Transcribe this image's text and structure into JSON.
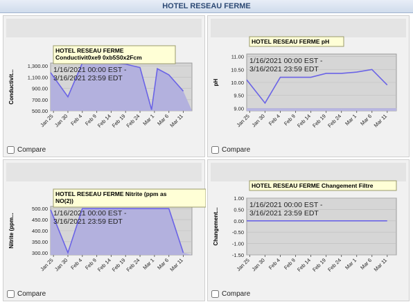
{
  "page_title": "HOTEL RESEAU FERME",
  "compare_label": "Compare",
  "x_ticks": [
    "Jan 25",
    "Jan 30",
    "Feb 4",
    "Feb 9",
    "Feb 14",
    "Feb 19",
    "Feb 24",
    "Mar 1",
    "Mar 6",
    "Mar 11"
  ],
  "chart_data": [
    {
      "type": "area",
      "title": "HOTEL RESEAU FERME Conductivit0xe9 0xb5S0x2Fcm",
      "ylabel": "Conductivit...",
      "date_range": "1/16/2021 00:00 EST - 3/16/2021 23:59 EDT",
      "y_ticks": [
        "1,300.00",
        "1,100.00",
        "900.00",
        "700.00",
        "500.00"
      ],
      "ylim": [
        500,
        1350
      ],
      "x": [
        "Jan 24",
        "Jan 30",
        "Feb 4",
        "Feb 9",
        "Feb 14",
        "Feb 19",
        "Feb 24",
        "Feb 28",
        "Mar 2",
        "Mar 6",
        "Mar 11"
      ],
      "values": [
        1180,
        750,
        1350,
        1350,
        1350,
        1330,
        1270,
        520,
        1250,
        1140,
        850
      ]
    },
    {
      "type": "line",
      "title": "HOTEL RESEAU FERME pH",
      "ylabel": "pH",
      "date_range": "1/16/2021 00:00 EST - 3/16/2021 23:59 EDT",
      "y_ticks": [
        "11.00",
        "10.50",
        "10.00",
        "9.50",
        "9.00"
      ],
      "ylim": [
        8.9,
        11.1
      ],
      "x": [
        "Jan 24",
        "Jan 30",
        "Feb 4",
        "Feb 9",
        "Feb 14",
        "Feb 19",
        "Feb 24",
        "Mar 1",
        "Mar 6",
        "Mar 11"
      ],
      "values": [
        10.1,
        9.2,
        10.2,
        10.2,
        10.2,
        10.35,
        10.35,
        10.4,
        10.5,
        9.9
      ]
    },
    {
      "type": "area",
      "title": "HOTEL RESEAU FERME Nitrite (ppm as NO(2))",
      "ylabel": "Nitrite (ppm...",
      "date_range": "1/16/2021 00:00 EST - 3/16/2021 23:59 EDT",
      "y_ticks": [
        "500.00",
        "450.00",
        "400.00",
        "350.00",
        "300.00"
      ],
      "ylim": [
        290,
        510
      ],
      "x": [
        "Jan 24",
        "Jan 30",
        "Feb 4",
        "Feb 9",
        "Feb 14",
        "Feb 19",
        "Feb 24",
        "Mar 1",
        "Mar 6",
        "Mar 11"
      ],
      "values": [
        495,
        300,
        500,
        500,
        500,
        500,
        500,
        500,
        500,
        300
      ]
    },
    {
      "type": "line",
      "title": "HOTEL RESEAU FERME Changement Filtre",
      "ylabel": "Changement...",
      "date_range": "1/16/2021 00:00 EST - 3/16/2021 23:59 EDT",
      "y_ticks": [
        "1.00",
        "0.50",
        "0.00",
        "-0.50",
        "-1.00",
        "-1.50"
      ],
      "ylim": [
        -1.5,
        1.0
      ],
      "x": [
        "Jan 24",
        "Mar 11"
      ],
      "values": [
        0,
        0
      ]
    }
  ]
}
